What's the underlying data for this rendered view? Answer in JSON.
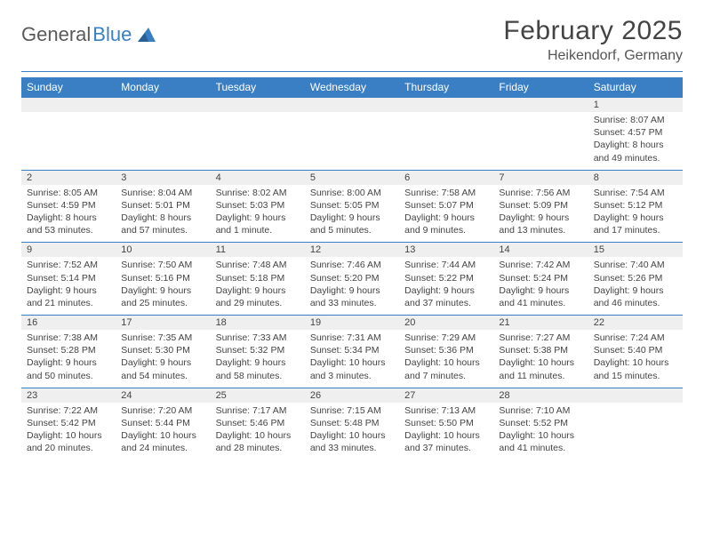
{
  "logo": {
    "text1": "General",
    "text2": "Blue"
  },
  "title": "February 2025",
  "location": "Heikendorf, Germany",
  "colors": {
    "accent": "#3a7fc4",
    "header_text": "#444444",
    "body_text": "#444444",
    "strip_bg": "#efefef",
    "background": "#ffffff"
  },
  "weekdays": [
    "Sunday",
    "Monday",
    "Tuesday",
    "Wednesday",
    "Thursday",
    "Friday",
    "Saturday"
  ],
  "weeks": [
    [
      {
        "n": "",
        "sr": "",
        "ss": "",
        "dl": ""
      },
      {
        "n": "",
        "sr": "",
        "ss": "",
        "dl": ""
      },
      {
        "n": "",
        "sr": "",
        "ss": "",
        "dl": ""
      },
      {
        "n": "",
        "sr": "",
        "ss": "",
        "dl": ""
      },
      {
        "n": "",
        "sr": "",
        "ss": "",
        "dl": ""
      },
      {
        "n": "",
        "sr": "",
        "ss": "",
        "dl": ""
      },
      {
        "n": "1",
        "sr": "Sunrise: 8:07 AM",
        "ss": "Sunset: 4:57 PM",
        "dl": "Daylight: 8 hours and 49 minutes."
      }
    ],
    [
      {
        "n": "2",
        "sr": "Sunrise: 8:05 AM",
        "ss": "Sunset: 4:59 PM",
        "dl": "Daylight: 8 hours and 53 minutes."
      },
      {
        "n": "3",
        "sr": "Sunrise: 8:04 AM",
        "ss": "Sunset: 5:01 PM",
        "dl": "Daylight: 8 hours and 57 minutes."
      },
      {
        "n": "4",
        "sr": "Sunrise: 8:02 AM",
        "ss": "Sunset: 5:03 PM",
        "dl": "Daylight: 9 hours and 1 minute."
      },
      {
        "n": "5",
        "sr": "Sunrise: 8:00 AM",
        "ss": "Sunset: 5:05 PM",
        "dl": "Daylight: 9 hours and 5 minutes."
      },
      {
        "n": "6",
        "sr": "Sunrise: 7:58 AM",
        "ss": "Sunset: 5:07 PM",
        "dl": "Daylight: 9 hours and 9 minutes."
      },
      {
        "n": "7",
        "sr": "Sunrise: 7:56 AM",
        "ss": "Sunset: 5:09 PM",
        "dl": "Daylight: 9 hours and 13 minutes."
      },
      {
        "n": "8",
        "sr": "Sunrise: 7:54 AM",
        "ss": "Sunset: 5:12 PM",
        "dl": "Daylight: 9 hours and 17 minutes."
      }
    ],
    [
      {
        "n": "9",
        "sr": "Sunrise: 7:52 AM",
        "ss": "Sunset: 5:14 PM",
        "dl": "Daylight: 9 hours and 21 minutes."
      },
      {
        "n": "10",
        "sr": "Sunrise: 7:50 AM",
        "ss": "Sunset: 5:16 PM",
        "dl": "Daylight: 9 hours and 25 minutes."
      },
      {
        "n": "11",
        "sr": "Sunrise: 7:48 AM",
        "ss": "Sunset: 5:18 PM",
        "dl": "Daylight: 9 hours and 29 minutes."
      },
      {
        "n": "12",
        "sr": "Sunrise: 7:46 AM",
        "ss": "Sunset: 5:20 PM",
        "dl": "Daylight: 9 hours and 33 minutes."
      },
      {
        "n": "13",
        "sr": "Sunrise: 7:44 AM",
        "ss": "Sunset: 5:22 PM",
        "dl": "Daylight: 9 hours and 37 minutes."
      },
      {
        "n": "14",
        "sr": "Sunrise: 7:42 AM",
        "ss": "Sunset: 5:24 PM",
        "dl": "Daylight: 9 hours and 41 minutes."
      },
      {
        "n": "15",
        "sr": "Sunrise: 7:40 AM",
        "ss": "Sunset: 5:26 PM",
        "dl": "Daylight: 9 hours and 46 minutes."
      }
    ],
    [
      {
        "n": "16",
        "sr": "Sunrise: 7:38 AM",
        "ss": "Sunset: 5:28 PM",
        "dl": "Daylight: 9 hours and 50 minutes."
      },
      {
        "n": "17",
        "sr": "Sunrise: 7:35 AM",
        "ss": "Sunset: 5:30 PM",
        "dl": "Daylight: 9 hours and 54 minutes."
      },
      {
        "n": "18",
        "sr": "Sunrise: 7:33 AM",
        "ss": "Sunset: 5:32 PM",
        "dl": "Daylight: 9 hours and 58 minutes."
      },
      {
        "n": "19",
        "sr": "Sunrise: 7:31 AM",
        "ss": "Sunset: 5:34 PM",
        "dl": "Daylight: 10 hours and 3 minutes."
      },
      {
        "n": "20",
        "sr": "Sunrise: 7:29 AM",
        "ss": "Sunset: 5:36 PM",
        "dl": "Daylight: 10 hours and 7 minutes."
      },
      {
        "n": "21",
        "sr": "Sunrise: 7:27 AM",
        "ss": "Sunset: 5:38 PM",
        "dl": "Daylight: 10 hours and 11 minutes."
      },
      {
        "n": "22",
        "sr": "Sunrise: 7:24 AM",
        "ss": "Sunset: 5:40 PM",
        "dl": "Daylight: 10 hours and 15 minutes."
      }
    ],
    [
      {
        "n": "23",
        "sr": "Sunrise: 7:22 AM",
        "ss": "Sunset: 5:42 PM",
        "dl": "Daylight: 10 hours and 20 minutes."
      },
      {
        "n": "24",
        "sr": "Sunrise: 7:20 AM",
        "ss": "Sunset: 5:44 PM",
        "dl": "Daylight: 10 hours and 24 minutes."
      },
      {
        "n": "25",
        "sr": "Sunrise: 7:17 AM",
        "ss": "Sunset: 5:46 PM",
        "dl": "Daylight: 10 hours and 28 minutes."
      },
      {
        "n": "26",
        "sr": "Sunrise: 7:15 AM",
        "ss": "Sunset: 5:48 PM",
        "dl": "Daylight: 10 hours and 33 minutes."
      },
      {
        "n": "27",
        "sr": "Sunrise: 7:13 AM",
        "ss": "Sunset: 5:50 PM",
        "dl": "Daylight: 10 hours and 37 minutes."
      },
      {
        "n": "28",
        "sr": "Sunrise: 7:10 AM",
        "ss": "Sunset: 5:52 PM",
        "dl": "Daylight: 10 hours and 41 minutes."
      },
      {
        "n": "",
        "sr": "",
        "ss": "",
        "dl": ""
      }
    ]
  ]
}
